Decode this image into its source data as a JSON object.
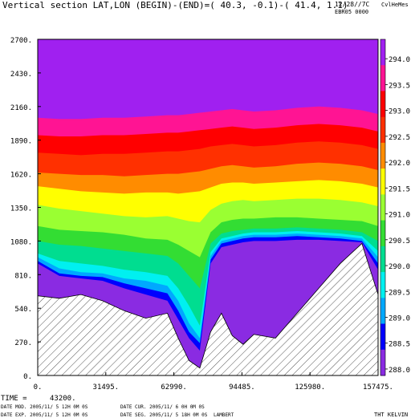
{
  "header": {
    "title": "Vertical section LAT,LON (BEGIN)-(END)=( 40.3, -0.1)-( 41.4,  1.1)",
    "date": "12/28//7C",
    "code": "CvlHeMes",
    "experiment": "EBR05 0000"
  },
  "footer": {
    "time_label": "TIME = ",
    "time_value": "43200.",
    "date_mod": "DATE MOD. 2005/11/ 5  12H 0M 0S",
    "date_cur": "DATE CUR. 2005/11/ 6    0H 0M 0S",
    "date_exp": "DATE EXP. 2005/11/ 5  12H 0M 0S",
    "date_seg": "DATE SEG. 2005/11/ 5  18H 0M 0S",
    "projection": "LAMBERT",
    "variable": "THT KELVIN"
  },
  "colors": {
    "levels": [
      {
        "value": "294.0",
        "color": "#a020f0"
      },
      {
        "value": "293.5",
        "color": "#ff1493"
      },
      {
        "value": "293.0",
        "color": "#ff0000"
      },
      {
        "value": "292.5",
        "color": "#ff3000"
      },
      {
        "value": "292.0",
        "color": "#ff8c00"
      },
      {
        "value": "291.5",
        "color": "#ffff00"
      },
      {
        "value": "291.0",
        "color": "#9aff32"
      },
      {
        "value": "290.5",
        "color": "#33dd33"
      },
      {
        "value": "290.0",
        "color": "#00dd90"
      },
      {
        "value": "289.5",
        "color": "#00f0f0"
      },
      {
        "value": "289.0",
        "color": "#00a8ff"
      },
      {
        "value": "288.5",
        "color": "#0000ff"
      },
      {
        "value": "288.0",
        "color": "#8a2be2"
      }
    ]
  },
  "chart_data": {
    "type": "contour",
    "x_ticks": [
      "0.",
      "31495.",
      "62990.",
      "94485.",
      "125980.",
      "157475."
    ],
    "y_ticks": [
      "0.",
      "270.",
      "540.",
      "810.",
      "1080.",
      "1350.",
      "1620.",
      "1890.",
      "2160.",
      "2430.",
      "2700."
    ],
    "xlim": [
      0,
      157475
    ],
    "ylim": [
      0,
      2700
    ],
    "colorbar_ticks": [
      "294.0",
      "293.5",
      "293.0",
      "292.5",
      "292.0",
      "291.5",
      "291.0",
      "290.5",
      "290.0",
      "289.5",
      "289.0",
      "288.5",
      "288.0"
    ],
    "x": [
      0,
      10000,
      20000,
      30000,
      40000,
      50000,
      60000,
      65000,
      70000,
      75000,
      80000,
      85000,
      90000,
      95000,
      100000,
      110000,
      120000,
      130000,
      140000,
      150000,
      157475
    ],
    "terrain": [
      640,
      620,
      650,
      600,
      520,
      460,
      500,
      300,
      120,
      60,
      350,
      500,
      320,
      250,
      330,
      300,
      500,
      700,
      900,
      1060,
      650
    ],
    "series": [
      {
        "level": "288.0",
        "boundary": [
          900,
          800,
          780,
          760,
          700,
          650,
          600,
          450,
          300,
          200,
          900,
          1030,
          1050,
          1070,
          1080,
          1080,
          1090,
          1090,
          1080,
          1070,
          850
        ]
      },
      {
        "level": "288.5",
        "boundary": [
          920,
          820,
          800,
          790,
          740,
          700,
          660,
          520,
          350,
          260,
          930,
          1060,
          1080,
          1100,
          1110,
          1110,
          1120,
          1110,
          1100,
          1080,
          900
        ]
      },
      {
        "level": "289.0",
        "boundary": [
          950,
          860,
          830,
          820,
          780,
          760,
          720,
          600,
          420,
          300,
          960,
          1080,
          1100,
          1120,
          1130,
          1130,
          1140,
          1130,
          1120,
          1100,
          950
        ]
      },
      {
        "level": "289.5",
        "boundary": [
          980,
          920,
          900,
          880,
          850,
          830,
          800,
          700,
          560,
          400,
          990,
          1100,
          1120,
          1140,
          1150,
          1150,
          1160,
          1150,
          1140,
          1120,
          1000
        ]
      },
      {
        "level": "290.0",
        "boundary": [
          1080,
          1050,
          1040,
          1020,
          1000,
          980,
          960,
          900,
          800,
          700,
          1060,
          1140,
          1160,
          1170,
          1180,
          1180,
          1190,
          1180,
          1170,
          1150,
          1080
        ]
      },
      {
        "level": "290.5",
        "boundary": [
          1200,
          1170,
          1160,
          1150,
          1130,
          1100,
          1090,
          1050,
          1000,
          950,
          1150,
          1230,
          1250,
          1260,
          1260,
          1270,
          1270,
          1260,
          1250,
          1240,
          1200
        ]
      },
      {
        "level": "291.0",
        "boundary": [
          1370,
          1340,
          1320,
          1300,
          1280,
          1270,
          1280,
          1260,
          1240,
          1230,
          1330,
          1380,
          1400,
          1410,
          1400,
          1410,
          1420,
          1420,
          1410,
          1390,
          1360
        ]
      },
      {
        "level": "291.5",
        "boundary": [
          1520,
          1500,
          1480,
          1470,
          1460,
          1470,
          1470,
          1460,
          1470,
          1480,
          1510,
          1540,
          1550,
          1550,
          1540,
          1550,
          1560,
          1570,
          1560,
          1540,
          1510
        ]
      },
      {
        "level": "292.0",
        "boundary": [
          1630,
          1620,
          1610,
          1610,
          1600,
          1610,
          1620,
          1620,
          1630,
          1640,
          1660,
          1680,
          1690,
          1680,
          1670,
          1680,
          1700,
          1710,
          1700,
          1680,
          1650
        ]
      },
      {
        "level": "292.5",
        "boundary": [
          1790,
          1780,
          1770,
          1780,
          1780,
          1790,
          1800,
          1800,
          1810,
          1820,
          1840,
          1850,
          1860,
          1850,
          1840,
          1850,
          1870,
          1880,
          1870,
          1850,
          1820
        ]
      },
      {
        "level": "293.0",
        "boundary": [
          1930,
          1920,
          1920,
          1930,
          1930,
          1940,
          1950,
          1950,
          1960,
          1970,
          1980,
          1990,
          2000,
          1990,
          1980,
          1990,
          2010,
          2020,
          2010,
          1990,
          1960
        ]
      },
      {
        "level": "293.5",
        "boundary": [
          2070,
          2060,
          2060,
          2070,
          2070,
          2080,
          2090,
          2090,
          2100,
          2110,
          2120,
          2130,
          2140,
          2130,
          2120,
          2130,
          2150,
          2160,
          2150,
          2130,
          2100
        ]
      }
    ]
  }
}
